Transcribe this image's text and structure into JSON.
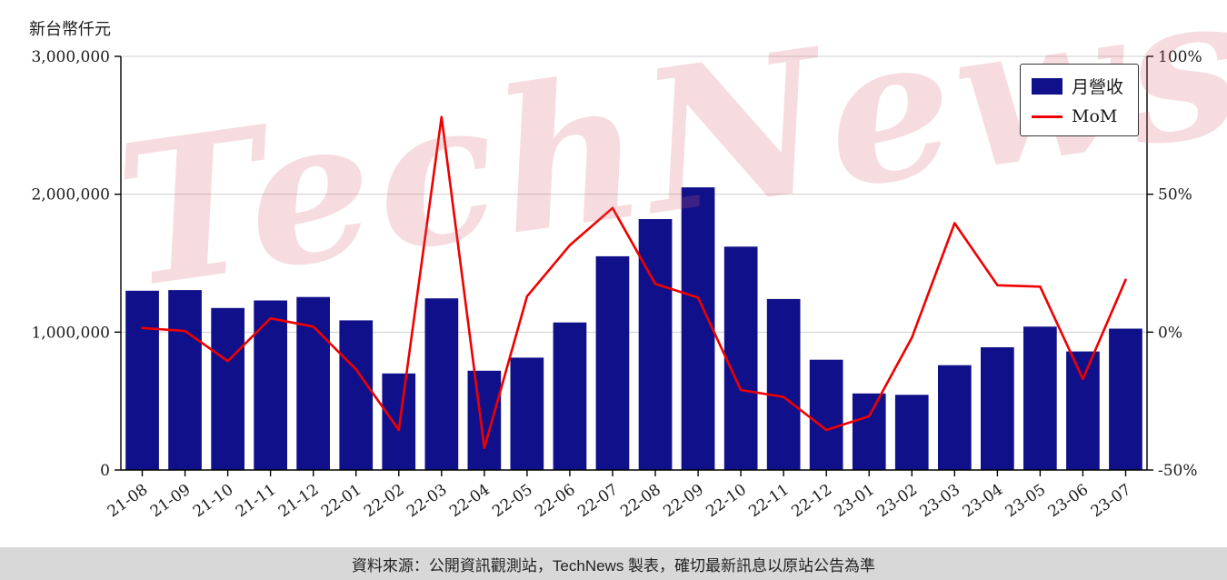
{
  "y_axis_title": "新台幣仟元",
  "watermark": "TechNews",
  "legend": {
    "bar_label": "月營收",
    "line_label": "MoM"
  },
  "footer": {
    "text": "資料來源：公開資訊觀測站，TechNews 製表，確切最新訊息以原站公告為準"
  },
  "chart_data": {
    "type": "bar",
    "subtype": "bar-line-combo",
    "title": "",
    "xlabel": "",
    "ylabel": "新台幣仟元",
    "grid": true,
    "legend_position": "top-right",
    "categories": [
      "21-08",
      "21-09",
      "21-10",
      "21-11",
      "21-12",
      "22-01",
      "22-02",
      "22-03",
      "22-04",
      "22-05",
      "22-06",
      "22-07",
      "22-08",
      "22-09",
      "22-10",
      "22-11",
      "22-12",
      "23-01",
      "23-02",
      "23-03",
      "23-04",
      "23-05",
      "23-06",
      "23-07"
    ],
    "series": [
      {
        "name": "月營收",
        "type": "bar",
        "axis": "left",
        "color": "#10108a",
        "values": [
          1300000,
          1305000,
          1175000,
          1230000,
          1255000,
          1085000,
          700000,
          1245000,
          720000,
          815000,
          1070000,
          1550000,
          1820000,
          2050000,
          1620000,
          1240000,
          800000,
          555000,
          545000,
          760000,
          890000,
          1040000,
          860000,
          1025000
        ]
      },
      {
        "name": "MoM",
        "type": "line",
        "axis": "right",
        "unit": "%",
        "color": "#ee0000",
        "values": [
          1.5,
          0.4,
          -10.5,
          5,
          2,
          -13.5,
          -35.5,
          78,
          -42,
          13,
          31.5,
          45,
          17.5,
          12.5,
          -21,
          -23.5,
          -35.5,
          -30.5,
          -2,
          39.5,
          17,
          16.5,
          -17,
          19
        ]
      }
    ],
    "left_axis": {
      "range": [
        0,
        3000000
      ],
      "ticks": [
        0,
        1000000,
        2000000,
        3000000
      ],
      "tick_labels": [
        "0",
        "1,000,000",
        "2,000,000",
        "3,000,000"
      ]
    },
    "right_axis": {
      "range": [
        -50,
        100
      ],
      "ticks": [
        -50,
        0,
        50,
        100
      ],
      "tick_labels": [
        "-50%",
        "0%",
        "50%",
        "100%"
      ]
    }
  }
}
